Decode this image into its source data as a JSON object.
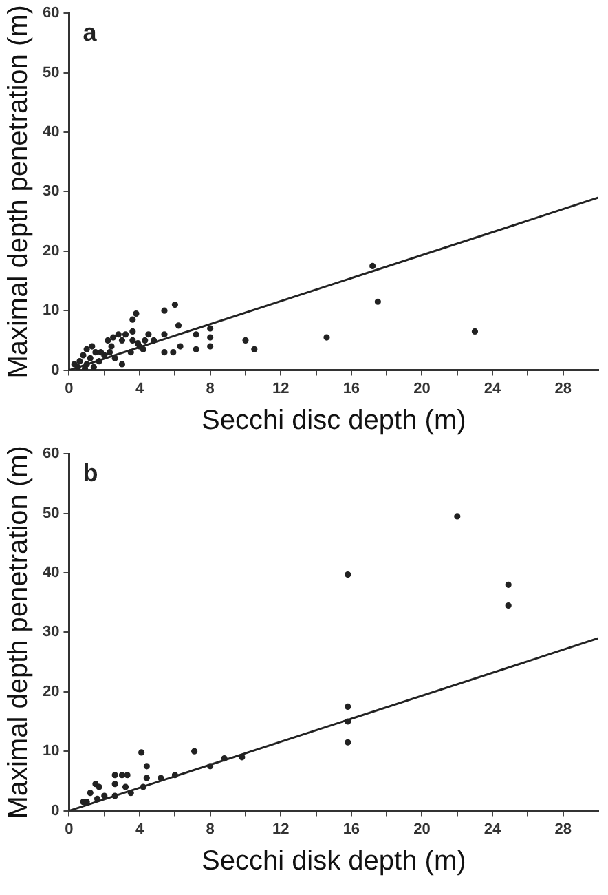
{
  "chart_data": [
    {
      "type": "scatter",
      "title": "a",
      "xlabel": "Secchi disc depth (m)",
      "ylabel": "Maximal depth penetration (m)",
      "xlim": [
        0,
        30
      ],
      "ylim": [
        0,
        60
      ],
      "xticks": [
        0,
        {
          "value": 2,
          "label": null
        },
        4,
        {
          "value": 6,
          "label": null
        },
        8,
        {
          "value": 10,
          "label": null
        },
        12,
        {
          "value": 14,
          "label": null
        },
        16,
        {
          "value": 18,
          "label": null
        },
        20,
        {
          "value": 22,
          "label": null
        },
        24,
        {
          "value": 26,
          "label": null
        },
        28
      ],
      "yticks": [
        0,
        10,
        20,
        30,
        40,
        50,
        60
      ],
      "grid": false,
      "legend": false,
      "series": [
        {
          "type": "scatter",
          "color": "#222222",
          "marker": "circle",
          "x": [
            14.6,
            17.2,
            17.5,
            23,
            10,
            10.5,
            8,
            8,
            8,
            7.2,
            7.2,
            6.2,
            6.3,
            6,
            5.9,
            5.4,
            5.4,
            5.4,
            4.8,
            4.3,
            4,
            3.8,
            3.6,
            3.6,
            3.6,
            3.5,
            3.2,
            3,
            3,
            2.8,
            2.5,
            2.4,
            2.3,
            2.2,
            2,
            1.8,
            1.5,
            1.3,
            1.2,
            1,
            1,
            0.8,
            0.6,
            0.5,
            0.3,
            1.4,
            4.5,
            3.9,
            2.6,
            1.7,
            0.9,
            4.2
          ],
          "values": [
            5.5,
            17.5,
            11.5,
            6.5,
            5,
            3.5,
            7,
            5.5,
            4,
            6,
            3.5,
            7.5,
            4,
            11,
            3,
            10,
            6,
            3,
            5,
            5,
            4,
            9.5,
            8.5,
            6.5,
            5,
            3,
            6,
            5,
            1,
            6,
            5.5,
            4,
            3,
            5,
            2.5,
            3,
            3,
            4,
            2,
            3.5,
            1,
            2.5,
            1.5,
            0.5,
            1,
            0.5,
            6,
            4.5,
            2,
            1.5,
            0.3,
            3.5
          ]
        },
        {
          "type": "line",
          "color": "#222222",
          "marker": "none",
          "line_style": "solid",
          "x": [
            0,
            30
          ],
          "values": [
            0,
            29
          ]
        }
      ]
    },
    {
      "type": "scatter",
      "title": "b",
      "xlabel": "Secchi disk depth (m)",
      "ylabel": "Maximal depth penetration (m)",
      "xlim": [
        0,
        30
      ],
      "ylim": [
        0,
        60
      ],
      "xticks": [
        0,
        {
          "value": 2,
          "label": null
        },
        4,
        {
          "value": 6,
          "label": null
        },
        8,
        {
          "value": 10,
          "label": null
        },
        12,
        {
          "value": 14,
          "label": null
        },
        16,
        {
          "value": 18,
          "label": null
        },
        20,
        {
          "value": 22,
          "label": null
        },
        24,
        {
          "value": 26,
          "label": null
        },
        28
      ],
      "yticks": [
        0,
        10,
        20,
        30,
        40,
        50,
        60
      ],
      "grid": false,
      "legend": false,
      "series": [
        {
          "type": "scatter",
          "color": "#222222",
          "marker": "circle",
          "x": [
            22,
            15.8,
            24.9,
            24.9,
            15.8,
            15.8,
            15.8,
            7.1,
            4.1,
            4.4,
            4.4,
            4.2,
            5.2,
            6,
            8,
            8.8,
            9.8,
            3.3,
            3,
            2.6,
            3.2,
            2.6,
            2.6,
            2,
            1.5,
            1.7,
            1.2,
            1.6,
            0.8,
            1,
            3.5
          ],
          "values": [
            49.5,
            39.7,
            38,
            34.5,
            17.5,
            15,
            11.5,
            10,
            9.8,
            7.5,
            5.5,
            4,
            5.5,
            6,
            7.5,
            8.8,
            9,
            6,
            6,
            6,
            4,
            4.5,
            2.5,
            2.5,
            4.5,
            4,
            3,
            2,
            1.5,
            1.5,
            3
          ]
        },
        {
          "type": "line",
          "color": "#222222",
          "marker": "none",
          "line_style": "solid",
          "x": [
            0,
            30
          ],
          "values": [
            0,
            29
          ]
        }
      ]
    }
  ]
}
